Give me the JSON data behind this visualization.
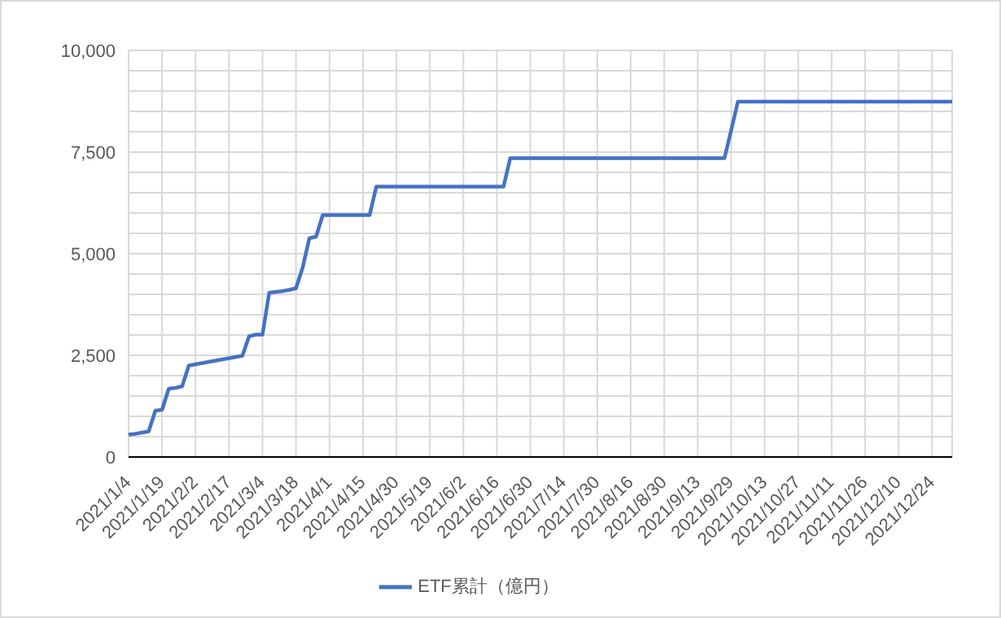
{
  "chart_data": {
    "type": "line",
    "categories": [
      "2021/1/4",
      null,
      null,
      null,
      null,
      "2021/1/19",
      null,
      null,
      null,
      null,
      "2021/2/2",
      null,
      null,
      null,
      null,
      "2021/2/17",
      null,
      null,
      null,
      null,
      "2021/3/4",
      null,
      null,
      null,
      null,
      "2021/3/18",
      null,
      null,
      null,
      null,
      "2021/4/1",
      null,
      null,
      null,
      null,
      "2021/4/15",
      null,
      null,
      null,
      null,
      "2021/4/30",
      null,
      null,
      null,
      null,
      "2021/5/19",
      null,
      null,
      null,
      null,
      "2021/6/2",
      null,
      null,
      null,
      null,
      "2021/6/16",
      null,
      null,
      null,
      null,
      "2021/6/30",
      null,
      null,
      null,
      null,
      "2021/7/14",
      null,
      null,
      null,
      null,
      "2021/7/30",
      null,
      null,
      null,
      null,
      "2021/8/16",
      null,
      null,
      null,
      null,
      "2021/8/30",
      null,
      null,
      null,
      null,
      "2021/9/13",
      null,
      null,
      null,
      null,
      "2021/9/29",
      null,
      null,
      null,
      null,
      "2021/10/13",
      null,
      null,
      null,
      null,
      "2021/10/27",
      null,
      null,
      null,
      null,
      "2021/11/11",
      null,
      null,
      null,
      null,
      "2021/11/26",
      null,
      null,
      null,
      null,
      "2021/12/10",
      null,
      null,
      null,
      null,
      "2021/12/24",
      null,
      null,
      null
    ],
    "series": [
      {
        "name": "ETF累計（億円）",
        "color": "#4472c4",
        "values": [
          550,
          570,
          600,
          630,
          1140,
          1160,
          1680,
          1700,
          1740,
          2250,
          2280,
          2310,
          2340,
          2370,
          2400,
          2430,
          2460,
          2490,
          2970,
          3010,
          3010,
          4040,
          4060,
          4080,
          4110,
          4150,
          4660,
          5380,
          5420,
          5950,
          5950,
          5950,
          5950,
          5950,
          5950,
          5950,
          5950,
          6650,
          6650,
          6650,
          6650,
          6650,
          6650,
          6650,
          6650,
          6650,
          6650,
          6650,
          6650,
          6650,
          6650,
          6650,
          6650,
          6650,
          6650,
          6650,
          6650,
          7350,
          7350,
          7350,
          7350,
          7350,
          7350,
          7350,
          7350,
          7350,
          7350,
          7350,
          7350,
          7350,
          7350,
          7350,
          7350,
          7350,
          7350,
          7350,
          7350,
          7350,
          7350,
          7350,
          7350,
          7350,
          7350,
          7350,
          7350,
          7350,
          7350,
          7350,
          7350,
          7350,
          8040,
          8740,
          8740,
          8740,
          8740,
          8740,
          8740,
          8740,
          8740,
          8740,
          8740,
          8740,
          8740,
          8740,
          8740,
          8740,
          8740,
          8740,
          8740,
          8740,
          8740,
          8740,
          8740,
          8740,
          8740,
          8740,
          8740,
          8740,
          8740,
          8740,
          8740,
          8740,
          8740,
          8740
        ]
      }
    ],
    "ylim": [
      0,
      10000
    ],
    "yticks": [
      {
        "value": 0,
        "label": "0"
      },
      {
        "value": 500,
        "label": null
      },
      {
        "value": 1000,
        "label": null
      },
      {
        "value": 1500,
        "label": null
      },
      {
        "value": 2000,
        "label": null
      },
      {
        "value": 2500,
        "label": "2,500"
      },
      {
        "value": 3000,
        "label": null
      },
      {
        "value": 3500,
        "label": null
      },
      {
        "value": 4000,
        "label": null
      },
      {
        "value": 4500,
        "label": null
      },
      {
        "value": 5000,
        "label": "5,000"
      },
      {
        "value": 5500,
        "label": null
      },
      {
        "value": 6000,
        "label": null
      },
      {
        "value": 6500,
        "label": null
      },
      {
        "value": 7000,
        "label": null
      },
      {
        "value": 7500,
        "label": "7,500"
      },
      {
        "value": 8000,
        "label": null
      },
      {
        "value": 8500,
        "label": null
      },
      {
        "value": 9000,
        "label": null
      },
      {
        "value": 9500,
        "label": null
      },
      {
        "value": 10000,
        "label": "10,000"
      }
    ],
    "grid": true,
    "legend": "bottom",
    "marker": "none",
    "line_style": "solid"
  }
}
